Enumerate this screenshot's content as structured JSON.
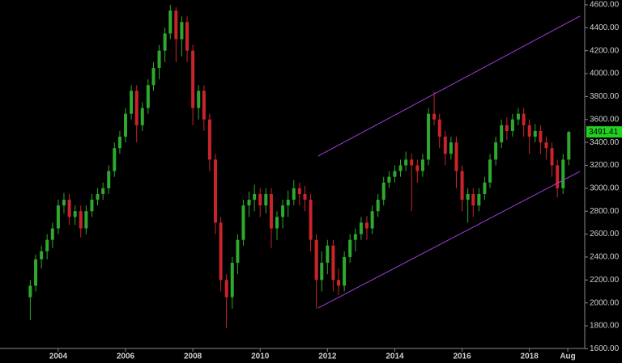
{
  "chart_data": {
    "type": "candlestick",
    "x": [
      2003.17,
      2003.33,
      2003.5,
      2003.67,
      2003.83,
      2004,
      2004.17,
      2004.33,
      2004.5,
      2004.67,
      2004.83,
      2005,
      2005.17,
      2005.33,
      2005.5,
      2005.67,
      2005.83,
      2006,
      2006.17,
      2006.33,
      2006.5,
      2006.67,
      2006.83,
      2007,
      2007.17,
      2007.33,
      2007.5,
      2007.67,
      2007.83,
      2008,
      2008.17,
      2008.33,
      2008.5,
      2008.67,
      2008.83,
      2009,
      2009.17,
      2009.33,
      2009.5,
      2009.67,
      2009.83,
      2010,
      2010.17,
      2010.33,
      2010.5,
      2010.67,
      2010.83,
      2011,
      2011.17,
      2011.33,
      2011.5,
      2011.67,
      2011.83,
      2012,
      2012.17,
      2012.33,
      2012.5,
      2012.67,
      2012.83,
      2013,
      2013.17,
      2013.33,
      2013.5,
      2013.67,
      2013.83,
      2014,
      2014.17,
      2014.33,
      2014.5,
      2014.67,
      2014.83,
      2015,
      2015.17,
      2015.33,
      2015.5,
      2015.67,
      2015.83,
      2016,
      2016.17,
      2016.33,
      2016.5,
      2016.67,
      2016.83,
      2017,
      2017.17,
      2017.33,
      2017.5,
      2017.67,
      2017.83,
      2018,
      2018.17,
      2018.33,
      2018.5,
      2018.67,
      2018.83,
      2019,
      2019.17
    ],
    "open": [
      2050,
      2150,
      2380,
      2450,
      2550,
      2650,
      2850,
      2900,
      2750,
      2800,
      2650,
      2800,
      2900,
      2950,
      3000,
      3150,
      3350,
      3450,
      3650,
      3850,
      3550,
      3700,
      3900,
      4050,
      4200,
      4350,
      4550,
      4300,
      4450,
      4200,
      3700,
      3850,
      3600,
      3250,
      2700,
      2200,
      2050,
      2350,
      2550,
      2850,
      2900,
      2950,
      2850,
      2950,
      2650,
      2750,
      2850,
      2900,
      3000,
      2950,
      2900,
      2550,
      2200,
      2350,
      2500,
      2200,
      2150,
      2400,
      2550,
      2600,
      2700,
      2650,
      2800,
      2900,
      3050,
      3100,
      3150,
      3200,
      3250,
      3200,
      3150,
      3250,
      3650,
      3600,
      3450,
      3300,
      3400,
      3150,
      2900,
      2950,
      2850,
      2950,
      3050,
      3250,
      3400,
      3550,
      3500,
      3600,
      3650,
      3550,
      3450,
      3500,
      3400,
      3350,
      3200,
      3000,
      3250
    ],
    "high": [
      2200,
      2420,
      2500,
      2600,
      2700,
      2900,
      2960,
      2950,
      2850,
      2850,
      2850,
      2950,
      3000,
      3050,
      3200,
      3400,
      3500,
      3700,
      3900,
      3900,
      3750,
      3950,
      4100,
      4250,
      4400,
      4600,
      4580,
      4500,
      4500,
      4250,
      3900,
      3900,
      3650,
      3300,
      2750,
      2250,
      2400,
      2600,
      2900,
      2970,
      3030,
      3000,
      3000,
      3000,
      2800,
      2900,
      2980,
      3070,
      3050,
      3020,
      2950,
      2600,
      2450,
      2550,
      2550,
      2300,
      2450,
      2600,
      2650,
      2750,
      2760,
      2850,
      2950,
      3100,
      3150,
      3200,
      3250,
      3320,
      3300,
      3250,
      3300,
      3700,
      3840,
      3650,
      3500,
      3450,
      3450,
      3200,
      3000,
      3000,
      3000,
      3100,
      3300,
      3450,
      3600,
      3620,
      3650,
      3700,
      3700,
      3600,
      3560,
      3550,
      3450,
      3400,
      3250,
      3300,
      3500
    ],
    "low": [
      1850,
      2100,
      2300,
      2380,
      2480,
      2600,
      2780,
      2680,
      2680,
      2570,
      2600,
      2750,
      2850,
      2900,
      2950,
      3100,
      3300,
      3400,
      3600,
      3400,
      3500,
      3650,
      3850,
      3950,
      4100,
      4300,
      4100,
      4150,
      4100,
      3550,
      3600,
      3500,
      3150,
      2600,
      2100,
      1780,
      1950,
      2250,
      2500,
      2750,
      2800,
      2750,
      2780,
      2480,
      2550,
      2650,
      2750,
      2850,
      2850,
      2800,
      2450,
      1950,
      2100,
      2250,
      2100,
      2070,
      2100,
      2350,
      2450,
      2550,
      2550,
      2600,
      2750,
      2850,
      3000,
      3050,
      3100,
      3150,
      2800,
      3050,
      3100,
      3200,
      3550,
      3350,
      3200,
      3250,
      3000,
      2800,
      2700,
      2750,
      2800,
      2900,
      3000,
      3200,
      3350,
      3420,
      3450,
      3550,
      3450,
      3300,
      3400,
      3300,
      3250,
      3100,
      2920,
      2950,
      3200
    ],
    "close": [
      2150,
      2380,
      2450,
      2550,
      2650,
      2850,
      2900,
      2750,
      2800,
      2650,
      2800,
      2900,
      2950,
      3000,
      3150,
      3350,
      3450,
      3650,
      3850,
      3550,
      3700,
      3900,
      4050,
      4200,
      4350,
      4550,
      4300,
      4450,
      4200,
      3700,
      3850,
      3600,
      3250,
      2700,
      2200,
      2050,
      2350,
      2550,
      2850,
      2900,
      2950,
      2850,
      2950,
      2650,
      2750,
      2850,
      2900,
      3000,
      2950,
      2900,
      2550,
      2200,
      2350,
      2500,
      2200,
      2150,
      2400,
      2550,
      2600,
      2700,
      2650,
      2800,
      2900,
      3050,
      3100,
      3150,
      3200,
      3250,
      3200,
      3150,
      3250,
      3650,
      3600,
      3450,
      3300,
      3400,
      3150,
      2900,
      2950,
      2850,
      2950,
      3050,
      3250,
      3400,
      3550,
      3500,
      3600,
      3650,
      3550,
      3450,
      3500,
      3400,
      3350,
      3200,
      3000,
      3250,
      3491.41
    ],
    "up_color": "#2ea82e",
    "down_color": "#c8252b",
    "last_price_color": "#22d022",
    "trendlines": [
      {
        "x": [
          2011.72,
          2019.5
        ],
        "y": [
          3281,
          4501
        ],
        "color": "#a43de0"
      },
      {
        "x": [
          2011.72,
          2019.5
        ],
        "y": [
          1955,
          3147
        ],
        "color": "#a43de0"
      }
    ],
    "xlim": [
      2002.27,
      2019.62
    ],
    "ylim": [
      1624,
      4642
    ],
    "xticks": [
      2004,
      2006,
      2008,
      2010,
      2012,
      2014,
      2016,
      2018,
      {
        "value": 2019.14,
        "label": "Aug"
      }
    ],
    "yticks": [
      {
        "value": 1600,
        "label": "1600.00"
      },
      {
        "value": 1800,
        "label": "1800.00"
      },
      {
        "value": 2000,
        "label": "2000.00"
      },
      {
        "value": 2200,
        "label": "2200.00"
      },
      {
        "value": 2400,
        "label": "2400.00"
      },
      {
        "value": 2600,
        "label": "2600.00"
      },
      {
        "value": 2800,
        "label": "2800.00"
      },
      {
        "value": 3000,
        "label": "3000.00"
      },
      {
        "value": 3200,
        "label": "3200.00"
      },
      {
        "value": 3400,
        "label": "3400.00"
      },
      {
        "value": 3600,
        "label": "3600.00"
      },
      {
        "value": 3800,
        "label": "3800.00"
      },
      {
        "value": 4000,
        "label": "4000.00"
      },
      {
        "value": 4200,
        "label": "4200.00"
      },
      {
        "value": 4400,
        "label": "4400.00"
      },
      {
        "value": 4600,
        "label": "4600.00"
      }
    ]
  }
}
